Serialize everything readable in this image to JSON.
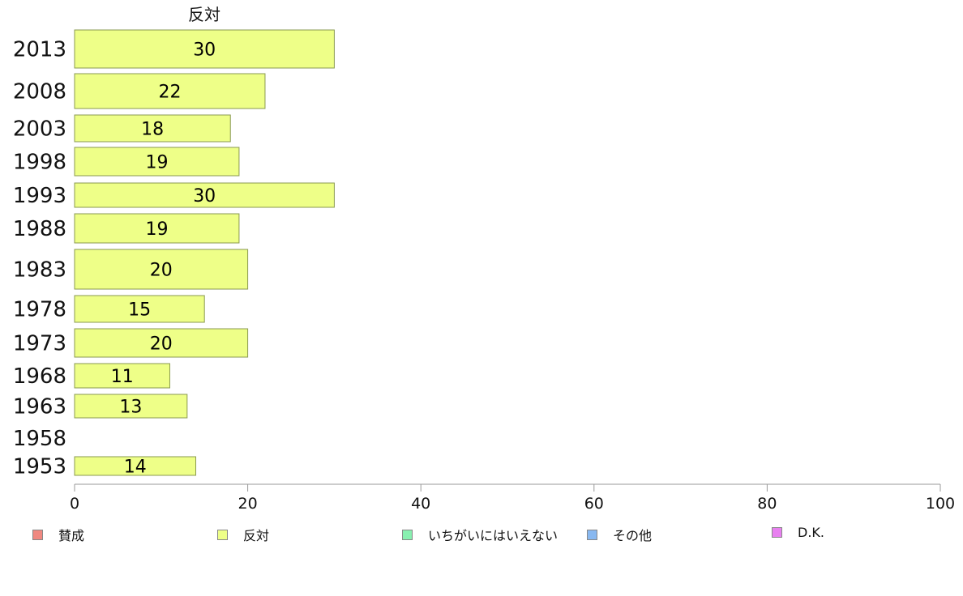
{
  "chart_data": {
    "type": "bar",
    "orientation": "horizontal",
    "series_title": "反対",
    "categories": [
      "2013",
      "2008",
      "2003",
      "1998",
      "1993",
      "1988",
      "1983",
      "1978",
      "1973",
      "1968",
      "1963",
      "1958",
      "1953"
    ],
    "values": [
      30,
      22,
      18,
      19,
      30,
      19,
      20,
      15,
      20,
      11,
      13,
      null,
      14
    ],
    "xlim": [
      0,
      100
    ],
    "xticks": [
      "0",
      "20",
      "40",
      "60",
      "80",
      "100"
    ],
    "grid": false,
    "legend_position": "bottom",
    "legend": [
      {
        "label": "賛成",
        "color": "#f08880"
      },
      {
        "label": "反対",
        "color": "#eeff88"
      },
      {
        "label": "いちがいにはいえない",
        "color": "#88f0b0"
      },
      {
        "label": "その他",
        "color": "#88b8f0"
      },
      {
        "label": "D.K.",
        "color": "#e880f0"
      }
    ],
    "bar_color": "#eeff88"
  }
}
